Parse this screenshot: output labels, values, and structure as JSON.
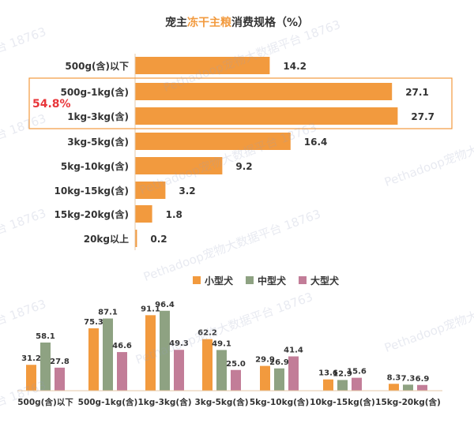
{
  "title": {
    "prefix": "宠主",
    "highlight": "冻干主粮",
    "suffix": "消费规格（%）"
  },
  "highlight_annotation": "54.8%",
  "colors": {
    "orange": "#f29a3e",
    "green": "#8ea282",
    "pink": "#c27d98",
    "highlight_red": "#e8363a",
    "text": "#333333"
  },
  "watermark": {
    "brand": "Pethadoop宠物大数据平台 18763",
    "short": "台 18763"
  },
  "chart_data": [
    {
      "type": "bar",
      "orientation": "horizontal",
      "categories": [
        "500g(含)以下",
        "500g-1kg(含)",
        "1kg-3kg(含)",
        "3kg-5kg(含)",
        "5kg-10kg(含)",
        "10kg-15kg(含)",
        "15kg-20kg(含)",
        "20kg以上"
      ],
      "values": [
        14.2,
        27.1,
        27.7,
        16.4,
        9.2,
        3.2,
        1.8,
        0.2
      ],
      "highlight": {
        "categories": [
          "500g-1kg(含)",
          "1kg-3kg(含)"
        ],
        "label": "54.8%"
      }
    },
    {
      "type": "bar",
      "categories": [
        "500g(含)以下",
        "500g-1kg(含)",
        "1kg-3kg(含)",
        "3kg-5kg(含)",
        "5kg-10kg(含)",
        "10kg-15kg(含)",
        "15kg-20kg(含)"
      ],
      "series": [
        {
          "name": "小型犬",
          "values": [
            31.2,
            75.3,
            91.1,
            62.2,
            29.9,
            13.6,
            8.3
          ]
        },
        {
          "name": "中型犬",
          "values": [
            58.1,
            87.1,
            96.4,
            49.1,
            26.9,
            12.9,
            7.3
          ]
        },
        {
          "name": "大型犬",
          "values": [
            27.8,
            46.6,
            49.3,
            25.0,
            41.4,
            15.6,
            6.9
          ]
        }
      ],
      "legend_position": "top"
    }
  ]
}
